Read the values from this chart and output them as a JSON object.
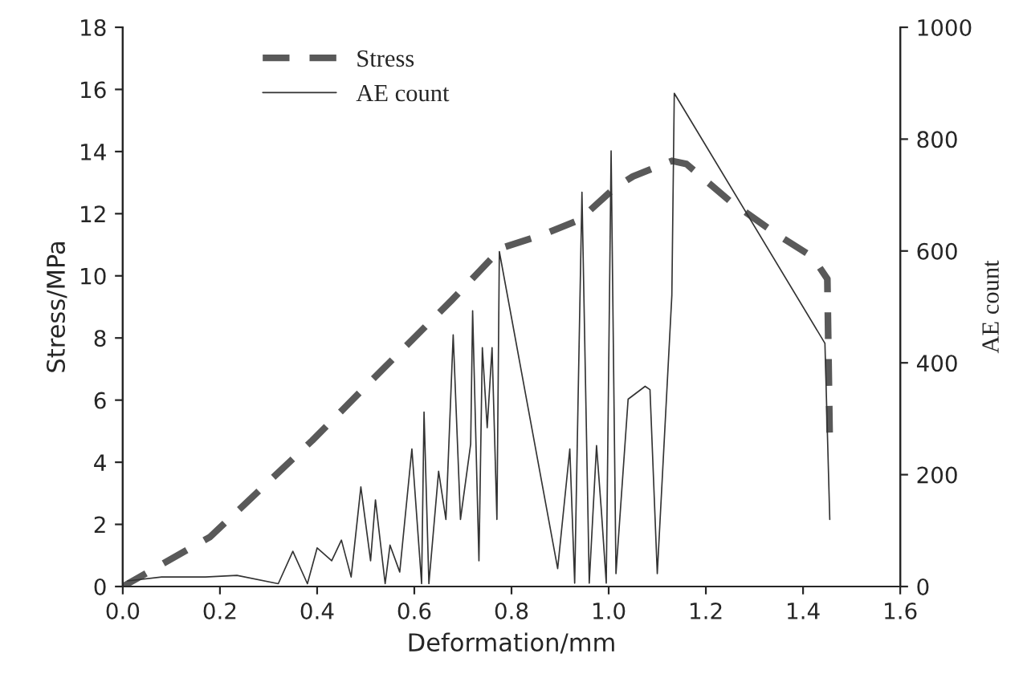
{
  "chart_data": {
    "type": "line",
    "xlabel": "Deformation/mm",
    "ylabel": "Stress/MPa",
    "y2label": "AE count",
    "xlim": [
      0,
      1.6
    ],
    "xticks": [
      {
        "value": 0,
        "label": "0.0"
      },
      {
        "value": 0.2,
        "label": "0.2"
      },
      {
        "value": 0.4,
        "label": "0.4"
      },
      {
        "value": 0.6,
        "label": "0.6"
      },
      {
        "value": 0.8,
        "label": "0.8"
      },
      {
        "value": 1,
        "label": "1.0"
      },
      {
        "value": 1.2,
        "label": "1.2"
      },
      {
        "value": 1.4,
        "label": "1.4"
      },
      {
        "value": 1.6,
        "label": "1.6"
      }
    ],
    "ylim": [
      0,
      18
    ],
    "yticks": [
      0,
      2,
      4,
      6,
      8,
      10,
      12,
      14,
      16,
      18
    ],
    "y2lim": [
      0,
      1000
    ],
    "y2ticks": [
      0,
      200,
      400,
      600,
      800,
      1000
    ],
    "legend": "top",
    "grid": false,
    "series": [
      {
        "name": "Stress",
        "color": "#595959",
        "line_style": "dashed",
        "x": [
          0,
          0.18,
          0.39,
          0.51,
          0.676,
          0.78,
          0.86,
          0.94,
          1.01,
          1.05,
          1.13,
          1.16,
          1.25,
          1.34,
          1.42,
          1.45,
          1.455
        ],
        "values": [
          0,
          1.6,
          4.7,
          6.6,
          9.2,
          10.9,
          11.3,
          11.8,
          12.8,
          13.2,
          13.7,
          13.6,
          12.4,
          11.4,
          10.6,
          9.9,
          4.6
        ]
      },
      {
        "name": "AE count",
        "color": "#333333",
        "line_style": "solid",
        "axis": "y2",
        "x": [
          0.01,
          0.08,
          0.17,
          0.235,
          0.32,
          0.35,
          0.38,
          0.4,
          0.43,
          0.45,
          0.47,
          0.49,
          0.51,
          0.52,
          0.54,
          0.55,
          0.57,
          0.595,
          0.615,
          0.62,
          0.63,
          0.65,
          0.665,
          0.68,
          0.695,
          0.716,
          0.72,
          0.733,
          0.74,
          0.75,
          0.76,
          0.77,
          0.775,
          0.895,
          0.92,
          0.93,
          0.945,
          0.96,
          0.975,
          0.985,
          0.995,
          1.005,
          1.015,
          1.04,
          1.075,
          1.085,
          1.1,
          1.13,
          1.135,
          1.445,
          1.455
        ],
        "values": [
          10,
          17,
          17,
          20,
          5,
          63,
          5,
          69,
          46,
          83,
          17,
          178,
          46,
          155,
          5,
          74,
          26,
          246,
          5,
          312,
          5,
          206,
          120,
          450,
          120,
          255,
          493,
          46,
          427,
          284,
          427,
          120,
          599,
          32,
          246,
          6,
          705,
          6,
          252,
          135,
          6,
          779,
          23,
          335,
          358,
          352,
          23,
          521,
          882,
          435,
          120
        ]
      }
    ]
  }
}
